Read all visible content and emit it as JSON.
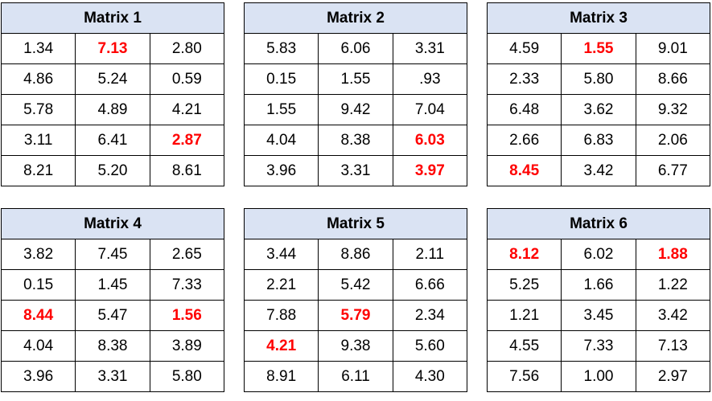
{
  "highlight_color": "#ff0000",
  "header_color": "#dae3f3",
  "matrices": [
    {
      "title": "Matrix 1",
      "rows": [
        [
          "1.34",
          "7.13",
          "2.80"
        ],
        [
          "4.86",
          "5.24",
          "0.59"
        ],
        [
          "5.78",
          "4.89",
          "4.21"
        ],
        [
          "3.11",
          "6.41",
          "2.87"
        ],
        [
          "8.21",
          "5.20",
          "8.61"
        ]
      ],
      "highlighted": [
        [
          0,
          1
        ],
        [
          3,
          2
        ]
      ]
    },
    {
      "title": "Matrix 2",
      "rows": [
        [
          "5.83",
          "6.06",
          "3.31"
        ],
        [
          "0.15",
          "1.55",
          ".93"
        ],
        [
          "1.55",
          "9.42",
          "7.04"
        ],
        [
          "4.04",
          "8.38",
          "6.03"
        ],
        [
          "3.96",
          "3.31",
          "3.97"
        ]
      ],
      "highlighted": [
        [
          3,
          2
        ],
        [
          4,
          2
        ]
      ]
    },
    {
      "title": "Matrix 3",
      "rows": [
        [
          "4.59",
          "1.55",
          "9.01"
        ],
        [
          "2.33",
          "5.80",
          "8.66"
        ],
        [
          "6.48",
          "3.62",
          "9.32"
        ],
        [
          "2.66",
          "6.83",
          "2.06"
        ],
        [
          "8.45",
          "3.42",
          "6.77"
        ]
      ],
      "highlighted": [
        [
          0,
          1
        ],
        [
          4,
          0
        ]
      ]
    },
    {
      "title": "Matrix 4",
      "rows": [
        [
          "3.82",
          "7.45",
          "2.65"
        ],
        [
          "0.15",
          "1.45",
          "7.33"
        ],
        [
          "8.44",
          "5.47",
          "1.56"
        ],
        [
          "4.04",
          "8.38",
          "3.89"
        ],
        [
          "3.96",
          "3.31",
          "5.80"
        ]
      ],
      "highlighted": [
        [
          2,
          0
        ],
        [
          2,
          2
        ]
      ]
    },
    {
      "title": "Matrix 5",
      "rows": [
        [
          "3.44",
          "8.86",
          "2.11"
        ],
        [
          "2.21",
          "5.42",
          "6.66"
        ],
        [
          "7.88",
          "5.79",
          "2.34"
        ],
        [
          "4.21",
          "9.38",
          "5.60"
        ],
        [
          "8.91",
          "6.11",
          "4.30"
        ]
      ],
      "highlighted": [
        [
          2,
          1
        ],
        [
          3,
          0
        ]
      ]
    },
    {
      "title": "Matrix 6",
      "rows": [
        [
          "8.12",
          "6.02",
          "1.88"
        ],
        [
          "5.25",
          "1.66",
          "1.22"
        ],
        [
          "1.21",
          "3.45",
          "3.42"
        ],
        [
          "4.55",
          "7.33",
          "7.13"
        ],
        [
          "7.56",
          "1.00",
          "2.97"
        ]
      ],
      "highlighted": [
        [
          0,
          0
        ],
        [
          0,
          2
        ]
      ]
    }
  ]
}
